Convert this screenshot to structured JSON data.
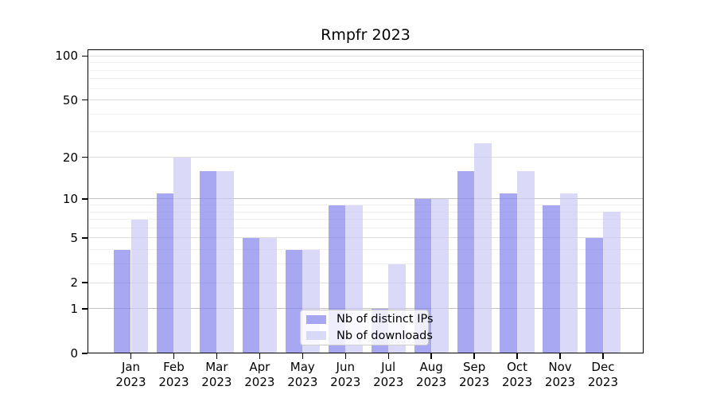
{
  "title": "Rmpfr 2023",
  "chart_data": {
    "type": "bar",
    "title": "Rmpfr 2023",
    "categories": [
      "Jan",
      "Feb",
      "Mar",
      "Apr",
      "May",
      "Jun",
      "Jul",
      "Aug",
      "Sep",
      "Oct",
      "Nov",
      "Dec"
    ],
    "category_year": "2023",
    "series": [
      {
        "name": "Nb of distinct IPs",
        "color": "rgba(131,131,236,0.7)",
        "values": [
          4,
          11,
          16,
          5,
          4,
          9,
          1,
          10,
          16,
          11,
          9,
          5
        ]
      },
      {
        "name": "Nb of downloads",
        "color": "rgba(202,202,245,0.7)",
        "values": [
          7,
          20,
          16,
          5,
          4,
          9,
          3,
          10,
          25,
          16,
          11,
          8
        ]
      }
    ],
    "yscale": "log1p",
    "ylim": [
      0,
      111
    ],
    "yticks": [
      0,
      1,
      2,
      5,
      10,
      20,
      50,
      100
    ],
    "gridlines": {
      "major": [
        1,
        10
      ],
      "labeled": [
        2,
        5,
        20,
        50,
        100
      ],
      "minor": [
        3,
        4,
        6,
        7,
        8,
        9,
        30,
        40,
        60,
        70,
        80,
        90
      ]
    },
    "grid": true,
    "legend_position": "lower center",
    "colors": {
      "major_grid": "#c3c3c3",
      "labeled_grid": "#dedede",
      "minor_grid": "#efefef",
      "axis": "#000000"
    }
  }
}
